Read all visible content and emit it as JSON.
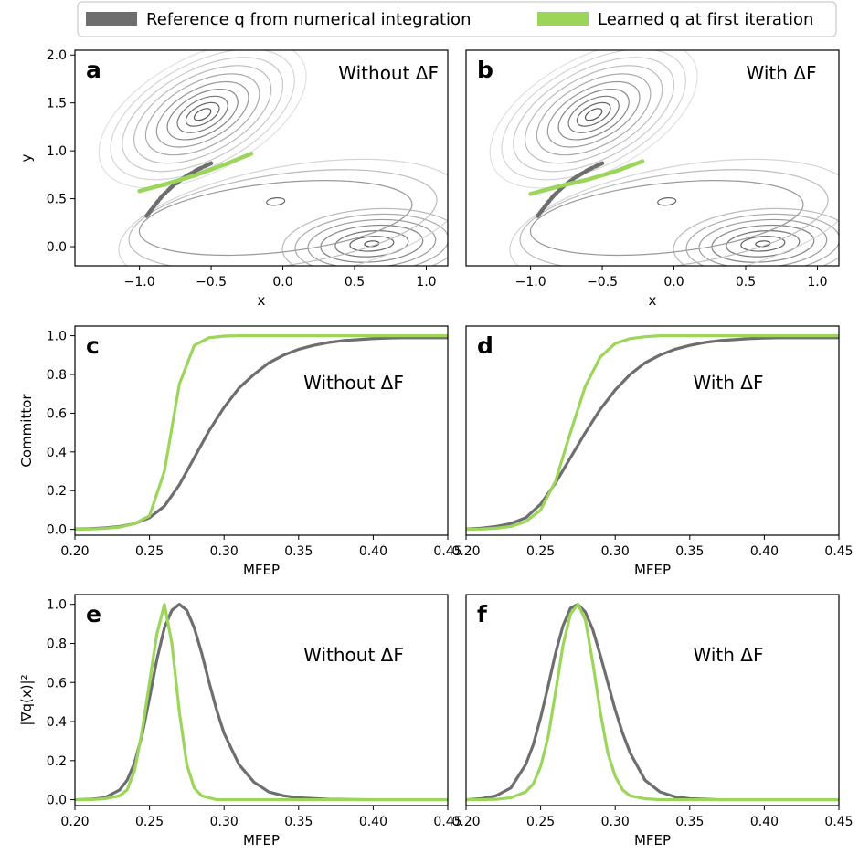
{
  "legend": {
    "placement": "top",
    "items": [
      {
        "label": "Reference q from numerical integration",
        "color": "#6e6e6e"
      },
      {
        "label": "Learned q at first iteration",
        "color": "#9bd65a"
      }
    ]
  },
  "colors": {
    "reference": "#6e6e6e",
    "learned": "#9bd65a",
    "contour": "#505050"
  },
  "chart_data": [
    {
      "panel": "a",
      "type": "line",
      "annotation": "Without ΔF",
      "xlabel": "x",
      "ylabel": "y",
      "xlim": [
        -1.45,
        1.15
      ],
      "ylim": [
        -0.2,
        2.05
      ],
      "xticks": [
        "−1.0",
        "−0.5",
        "0.0",
        "0.5",
        "1.0"
      ],
      "xtick_values": [
        -1.0,
        -0.5,
        0.0,
        0.5,
        1.0
      ],
      "yticks": [
        "0.0",
        "0.5",
        "1.0",
        "1.5",
        "2.0"
      ],
      "ytick_values": [
        0.0,
        0.5,
        1.0,
        1.5,
        2.0
      ],
      "contour_minima": [
        {
          "x": -0.56,
          "y": 1.44,
          "depth": "deep"
        },
        {
          "x": -0.05,
          "y": 0.47,
          "depth": "shallow"
        },
        {
          "x": 0.62,
          "y": 0.03,
          "depth": "deep"
        }
      ],
      "series": [
        {
          "name": "Reference q from numerical integration",
          "x": [
            -0.95,
            -0.9,
            -0.84,
            -0.77,
            -0.69,
            -0.6,
            -0.5
          ],
          "y": [
            0.32,
            0.42,
            0.53,
            0.63,
            0.72,
            0.8,
            0.87
          ]
        },
        {
          "name": "Learned q at first iteration",
          "x": [
            -1.0,
            -0.8,
            -0.6,
            -0.4,
            -0.22
          ],
          "y": [
            0.58,
            0.66,
            0.75,
            0.86,
            0.97
          ]
        }
      ]
    },
    {
      "panel": "b",
      "type": "line",
      "annotation": "With ΔF",
      "xlabel": "x",
      "ylabel": "",
      "xlim": [
        -1.45,
        1.15
      ],
      "ylim": [
        -0.2,
        2.05
      ],
      "xticks": [
        "−1.0",
        "−0.5",
        "0.0",
        "0.5",
        "1.0"
      ],
      "xtick_values": [
        -1.0,
        -0.5,
        0.0,
        0.5,
        1.0
      ],
      "yticks": [],
      "ytick_values": [],
      "contour_minima": [
        {
          "x": -0.56,
          "y": 1.44,
          "depth": "deep"
        },
        {
          "x": -0.05,
          "y": 0.47,
          "depth": "shallow"
        },
        {
          "x": 0.62,
          "y": 0.03,
          "depth": "deep"
        }
      ],
      "series": [
        {
          "name": "Reference q from numerical integration",
          "x": [
            -0.95,
            -0.9,
            -0.84,
            -0.77,
            -0.69,
            -0.6,
            -0.5
          ],
          "y": [
            0.32,
            0.42,
            0.53,
            0.63,
            0.72,
            0.8,
            0.87
          ]
        },
        {
          "name": "Learned q at first iteration",
          "x": [
            -1.0,
            -0.8,
            -0.6,
            -0.4,
            -0.22
          ],
          "y": [
            0.55,
            0.63,
            0.7,
            0.79,
            0.89
          ]
        }
      ]
    },
    {
      "panel": "c",
      "type": "line",
      "annotation": "Without ΔF",
      "xlabel": "MFEP",
      "ylabel": "Committor",
      "xlim": [
        0.2,
        0.45
      ],
      "ylim": [
        -0.03,
        1.05
      ],
      "xticks": [
        "0.20",
        "0.25",
        "0.30",
        "0.35",
        "0.40",
        "0.45"
      ],
      "xtick_values": [
        0.2,
        0.25,
        0.3,
        0.35,
        0.4,
        0.45
      ],
      "yticks": [
        "0.0",
        "0.2",
        "0.4",
        "0.6",
        "0.8",
        "1.0"
      ],
      "ytick_values": [
        0.0,
        0.2,
        0.4,
        0.6,
        0.8,
        1.0
      ],
      "x": [
        0.2,
        0.21,
        0.22,
        0.23,
        0.24,
        0.25,
        0.26,
        0.27,
        0.28,
        0.29,
        0.3,
        0.31,
        0.32,
        0.33,
        0.34,
        0.35,
        0.36,
        0.37,
        0.38,
        0.39,
        0.4,
        0.41,
        0.42,
        0.43,
        0.44,
        0.45
      ],
      "series": [
        {
          "name": "Reference q from numerical integration",
          "values": [
            0.002,
            0.004,
            0.008,
            0.015,
            0.03,
            0.06,
            0.12,
            0.23,
            0.37,
            0.51,
            0.63,
            0.73,
            0.8,
            0.86,
            0.9,
            0.93,
            0.95,
            0.965,
            0.975,
            0.98,
            0.985,
            0.988,
            0.99,
            0.99,
            0.99,
            0.99
          ]
        },
        {
          "name": "Learned q at first iteration",
          "values": [
            0.001,
            0.002,
            0.005,
            0.012,
            0.03,
            0.07,
            0.3,
            0.75,
            0.95,
            0.99,
            0.998,
            1.0,
            1.0,
            1.0,
            1.0,
            1.0,
            1.0,
            1.0,
            1.0,
            1.0,
            1.0,
            1.0,
            1.0,
            1.0,
            1.0,
            1.0
          ]
        }
      ]
    },
    {
      "panel": "d",
      "type": "line",
      "annotation": "With ΔF",
      "xlabel": "MFEP",
      "ylabel": "",
      "xlim": [
        0.2,
        0.45
      ],
      "ylim": [
        -0.03,
        1.05
      ],
      "xticks": [
        "0.20",
        "0.25",
        "0.30",
        "0.35",
        "0.40",
        "0.45"
      ],
      "xtick_values": [
        0.2,
        0.25,
        0.3,
        0.35,
        0.4,
        0.45
      ],
      "yticks": [],
      "ytick_values": [],
      "x": [
        0.2,
        0.21,
        0.22,
        0.23,
        0.24,
        0.25,
        0.26,
        0.27,
        0.28,
        0.29,
        0.3,
        0.31,
        0.32,
        0.33,
        0.34,
        0.35,
        0.36,
        0.37,
        0.38,
        0.39,
        0.4,
        0.41,
        0.42,
        0.43,
        0.44,
        0.45
      ],
      "series": [
        {
          "name": "Reference q from numerical integration",
          "values": [
            0.002,
            0.006,
            0.015,
            0.03,
            0.06,
            0.13,
            0.24,
            0.37,
            0.5,
            0.62,
            0.72,
            0.8,
            0.86,
            0.9,
            0.93,
            0.95,
            0.965,
            0.975,
            0.98,
            0.985,
            0.988,
            0.99,
            0.99,
            0.99,
            0.99,
            0.99
          ]
        },
        {
          "name": "Learned q at first iteration",
          "values": [
            0.001,
            0.002,
            0.006,
            0.015,
            0.04,
            0.1,
            0.25,
            0.5,
            0.74,
            0.89,
            0.96,
            0.985,
            0.995,
            1.0,
            1.0,
            1.0,
            1.0,
            1.0,
            1.0,
            1.0,
            1.0,
            1.0,
            1.0,
            1.0,
            1.0,
            1.0
          ]
        }
      ]
    },
    {
      "panel": "e",
      "type": "line",
      "annotation": "Without ΔF",
      "xlabel": "MFEP",
      "ylabel": "|∇q(x)|²",
      "xlim": [
        0.2,
        0.45
      ],
      "ylim": [
        -0.03,
        1.05
      ],
      "xticks": [
        "0.20",
        "0.25",
        "0.30",
        "0.35",
        "0.40",
        "0.45"
      ],
      "xtick_values": [
        0.2,
        0.25,
        0.3,
        0.35,
        0.4,
        0.45
      ],
      "yticks": [
        "0.0",
        "0.2",
        "0.4",
        "0.6",
        "0.8",
        "1.0"
      ],
      "ytick_values": [
        0.0,
        0.2,
        0.4,
        0.6,
        0.8,
        1.0
      ],
      "x": [
        0.2,
        0.21,
        0.22,
        0.23,
        0.235,
        0.24,
        0.245,
        0.25,
        0.255,
        0.26,
        0.265,
        0.27,
        0.275,
        0.28,
        0.285,
        0.29,
        0.295,
        0.3,
        0.31,
        0.32,
        0.33,
        0.34,
        0.35,
        0.37,
        0.4,
        0.45
      ],
      "series": [
        {
          "name": "Reference q from numerical integration",
          "values": [
            0.0,
            0.002,
            0.01,
            0.05,
            0.1,
            0.19,
            0.33,
            0.52,
            0.72,
            0.88,
            0.97,
            1.0,
            0.97,
            0.88,
            0.75,
            0.6,
            0.46,
            0.34,
            0.18,
            0.09,
            0.04,
            0.02,
            0.01,
            0.002,
            0.0,
            0.0
          ]
        },
        {
          "name": "Learned q at first iteration",
          "values": [
            0.0,
            0.0,
            0.005,
            0.02,
            0.05,
            0.15,
            0.35,
            0.6,
            0.85,
            1.0,
            0.8,
            0.45,
            0.18,
            0.06,
            0.02,
            0.01,
            0.0,
            0.0,
            0.0,
            0.0,
            0.0,
            0.0,
            0.0,
            0.0,
            0.0,
            0.0
          ]
        }
      ]
    },
    {
      "panel": "f",
      "type": "line",
      "annotation": "With ΔF",
      "xlabel": "MFEP",
      "ylabel": "",
      "xlim": [
        0.2,
        0.45
      ],
      "ylim": [
        -0.03,
        1.05
      ],
      "xticks": [
        "0.20",
        "0.25",
        "0.30",
        "0.35",
        "0.40",
        "0.45"
      ],
      "xtick_values": [
        0.2,
        0.25,
        0.3,
        0.35,
        0.4,
        0.45
      ],
      "yticks": [],
      "ytick_values": [],
      "x": [
        0.2,
        0.21,
        0.22,
        0.23,
        0.24,
        0.245,
        0.25,
        0.255,
        0.26,
        0.265,
        0.27,
        0.275,
        0.28,
        0.285,
        0.29,
        0.295,
        0.3,
        0.305,
        0.31,
        0.32,
        0.33,
        0.34,
        0.35,
        0.37,
        0.4,
        0.45
      ],
      "series": [
        {
          "name": "Reference q from numerical integration",
          "values": [
            0.0,
            0.005,
            0.02,
            0.06,
            0.18,
            0.28,
            0.42,
            0.58,
            0.75,
            0.89,
            0.98,
            1.0,
            0.96,
            0.87,
            0.74,
            0.6,
            0.46,
            0.34,
            0.24,
            0.1,
            0.04,
            0.015,
            0.005,
            0.0,
            0.0,
            0.0
          ]
        },
        {
          "name": "Learned q at first iteration",
          "values": [
            0.0,
            0.0,
            0.002,
            0.01,
            0.04,
            0.08,
            0.17,
            0.32,
            0.55,
            0.79,
            0.95,
            1.0,
            0.92,
            0.7,
            0.45,
            0.24,
            0.12,
            0.05,
            0.02,
            0.005,
            0.0,
            0.0,
            0.0,
            0.0,
            0.0,
            0.0
          ]
        }
      ]
    }
  ]
}
